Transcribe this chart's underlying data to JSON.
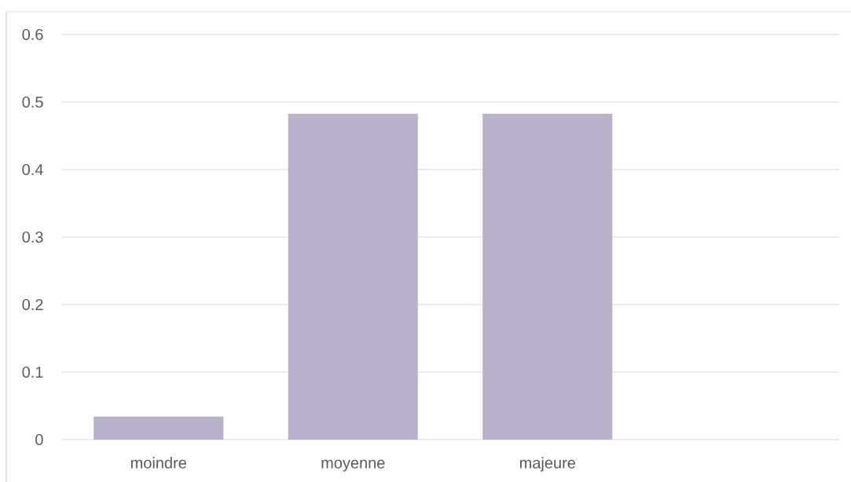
{
  "chart_data": {
    "type": "bar",
    "categories": [
      "moindre",
      "moyenne",
      "majeure",
      null
    ],
    "values": [
      0.034,
      0.483,
      0.483,
      null
    ],
    "color": "#b9b0ca",
    "ylim": [
      0,
      0.6
    ],
    "yticks": [
      0,
      0.1,
      0.2,
      0.3,
      0.4,
      0.5,
      0.6
    ],
    "grid": "y"
  }
}
